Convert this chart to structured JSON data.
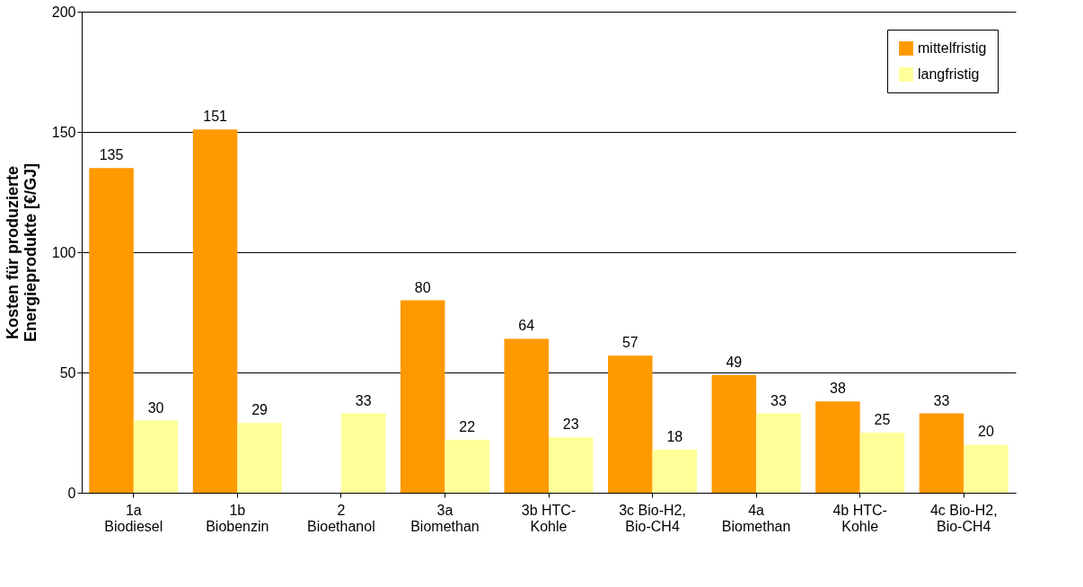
{
  "chart_data": {
    "type": "bar",
    "ylabel": "Kosten für produzierte\nEnergieprodukte [€/GJ]",
    "categories": [
      "1a\nBiodiesel",
      "1b\nBiobenzin",
      "2\nBioethanol",
      "3a\nBiomethan",
      "3b HTC-\nKohle",
      "3c Bio-H2,\nBio-CH4",
      "4a\nBiomethan",
      "4b HTC-\nKohle",
      "4c Bio-H2,\nBio-CH4"
    ],
    "series": [
      {
        "name": "mittelfristig",
        "color": "#ff9900",
        "values": [
          135,
          151,
          null,
          80,
          64,
          57,
          49,
          38,
          33
        ]
      },
      {
        "name": "langfristig",
        "color": "#ffff99",
        "values": [
          30,
          29,
          33,
          22,
          23,
          18,
          33,
          25,
          20
        ]
      }
    ],
    "ylim": [
      0,
      200
    ],
    "yticks": [
      0,
      50,
      100,
      150,
      200
    ],
    "grid": "y",
    "legend": "top right",
    "data_labels": true
  }
}
